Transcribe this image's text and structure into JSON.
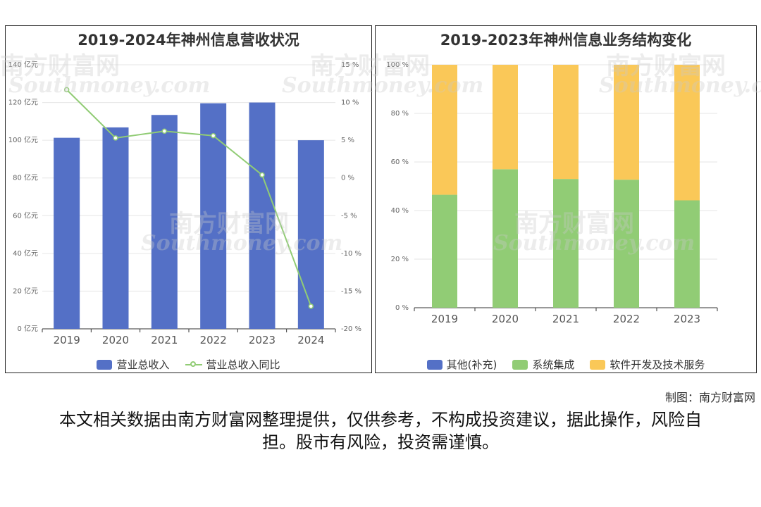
{
  "charts": [
    {
      "title": "2019-2024年神州信息营收状况",
      "legend": [
        "营业总收入",
        "营业总收入同比"
      ]
    },
    {
      "title": "2019-2023年神州信息业务结构变化",
      "legend": [
        "其他(补充)",
        "系统集成",
        "软件开发及技术服务"
      ]
    }
  ],
  "watermark": {
    "cn": "南方财富网",
    "en": "Southmoney.com"
  },
  "credit": "制图：南方财富网",
  "disclaimer": "本文相关数据由南方财富网整理提供，仅供参考，不构成投资建议，据此操作，风险自担。股市有风险，投资需谨慎。",
  "chart_data": [
    {
      "type": "bar",
      "categories": [
        "2019",
        "2020",
        "2021",
        "2022",
        "2023",
        "2024"
      ],
      "series": [
        {
          "name": "营业总收入",
          "type": "bar",
          "axis": "left",
          "color": "#5470c6",
          "values": [
            101.3,
            106.8,
            113.4,
            119.6,
            120.0,
            100.0
          ]
        },
        {
          "name": "营业总收入同比",
          "type": "line",
          "axis": "right",
          "color": "#91cc75",
          "values": [
            11.7,
            5.3,
            6.2,
            5.6,
            0.4,
            -17.0
          ]
        }
      ],
      "y_left": {
        "min": 0,
        "max": 140,
        "step": 20,
        "suffix": " 亿元"
      },
      "y_right": {
        "min": -20,
        "max": 15,
        "step": 5,
        "suffix": " %"
      },
      "grid": true,
      "legend_position": "bottom"
    },
    {
      "type": "bar",
      "stacked": true,
      "categories": [
        "2019",
        "2020",
        "2021",
        "2022",
        "2023"
      ],
      "series": [
        {
          "name": "其他(补充)",
          "color": "#5470c6",
          "values": [
            0,
            0,
            0,
            0,
            0
          ]
        },
        {
          "name": "系统集成",
          "color": "#91cc75",
          "values": [
            46.5,
            57.0,
            53.0,
            52.7,
            44.2
          ]
        },
        {
          "name": "软件开发及技术服务",
          "color": "#fac858",
          "values": [
            53.5,
            43.0,
            47.0,
            47.3,
            55.8
          ]
        }
      ],
      "y": {
        "min": 0,
        "max": 100,
        "step": 20,
        "suffix": " %"
      },
      "grid": true,
      "legend_position": "bottom"
    }
  ]
}
